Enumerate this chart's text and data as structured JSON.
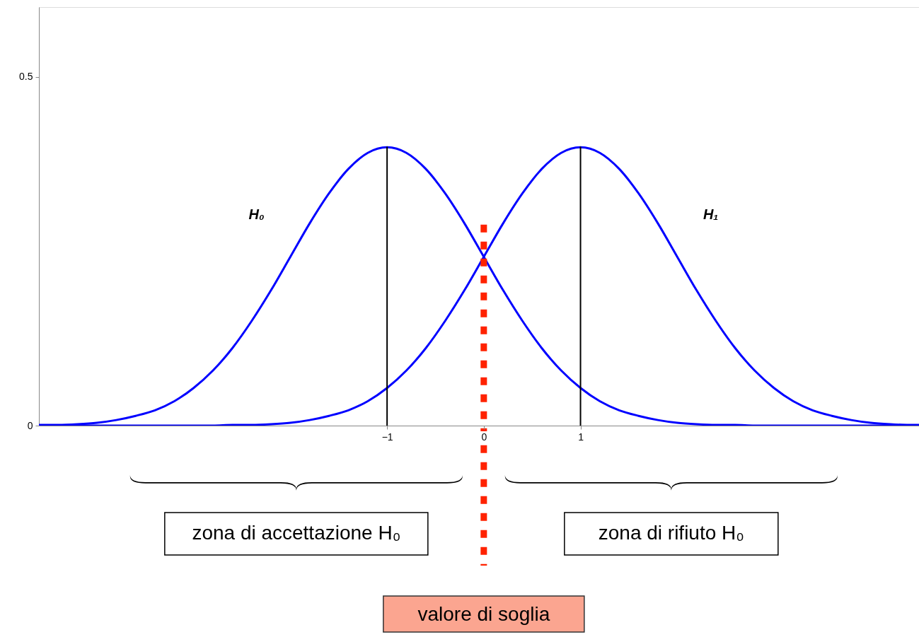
{
  "chart_data": {
    "type": "line",
    "series": [
      {
        "name": "H₀",
        "color": "#0000ff",
        "x": [
          -4.6,
          -4.4,
          -4.2,
          -4.0,
          -3.8,
          -3.6,
          -3.4,
          -3.2,
          -3.0,
          -2.8,
          -2.6,
          -2.4,
          -2.2,
          -2.0,
          -1.8,
          -1.6,
          -1.4,
          -1.2,
          -1.0,
          -0.8,
          -0.6,
          -0.4,
          -0.2,
          0,
          0.2,
          0.4,
          0.6,
          0.8,
          1.0,
          1.2,
          1.4,
          1.6,
          1.8,
          2.0,
          2.2,
          2.4,
          2.6,
          2.8,
          3.0,
          3.2,
          3.4,
          3.6,
          3.8,
          4.0,
          4.2,
          4.4
        ],
        "values": [
          0.001,
          0.001,
          0.002,
          0.004,
          0.008,
          0.014,
          0.022,
          0.035,
          0.054,
          0.079,
          0.111,
          0.15,
          0.194,
          0.242,
          0.29,
          0.333,
          0.368,
          0.391,
          0.399,
          0.391,
          0.368,
          0.333,
          0.29,
          0.242,
          0.194,
          0.15,
          0.111,
          0.079,
          0.054,
          0.035,
          0.022,
          0.014,
          0.008,
          0.004,
          0.002,
          0.001,
          0.001,
          0,
          0,
          0,
          0,
          0,
          0,
          0,
          0,
          0
        ]
      },
      {
        "name": "H₁",
        "color": "#0000ff",
        "x": [
          -4.4,
          -4.2,
          -4.0,
          -3.8,
          -3.6,
          -3.4,
          -3.2,
          -3.0,
          -2.8,
          -2.6,
          -2.4,
          -2.2,
          -2.0,
          -1.8,
          -1.6,
          -1.4,
          -1.2,
          -1.0,
          -0.8,
          -0.6,
          -0.4,
          -0.2,
          0,
          0.2,
          0.4,
          0.6,
          0.8,
          1.0,
          1.2,
          1.4,
          1.6,
          1.8,
          2.0,
          2.2,
          2.4,
          2.6,
          2.8,
          3.0,
          3.2,
          3.4,
          3.6,
          3.8,
          4.0,
          4.2,
          4.4,
          4.5
        ],
        "values": [
          0,
          0,
          0,
          0,
          0,
          0,
          0,
          0,
          0,
          0.001,
          0.001,
          0.002,
          0.004,
          0.008,
          0.014,
          0.022,
          0.035,
          0.054,
          0.079,
          0.111,
          0.15,
          0.194,
          0.242,
          0.29,
          0.333,
          0.368,
          0.391,
          0.399,
          0.391,
          0.368,
          0.333,
          0.29,
          0.242,
          0.194,
          0.15,
          0.111,
          0.079,
          0.054,
          0.035,
          0.022,
          0.014,
          0.008,
          0.004,
          0.002,
          0.001,
          0.001
        ]
      },
      {
        "type": "line",
        "color": "#000000",
        "x": [
          -1,
          -1
        ],
        "values": [
          0,
          0.399
        ]
      },
      {
        "type": "line",
        "color": "#000000",
        "x": [
          1,
          1
        ],
        "values": [
          0,
          0.399
        ]
      }
    ],
    "xlim": [
      -4.6,
      4.5
    ],
    "xticks": [
      -1,
      0,
      1
    ],
    "ylim": [
      0,
      0.6
    ],
    "yticks": [
      0,
      0.5
    ],
    "grid": false,
    "legend": false,
    "ref_lines": [
      {
        "axis": "x",
        "value": 0,
        "label": "valore di soglia",
        "color": "#ff2200",
        "line_style": "dotted"
      }
    ],
    "annotations": [
      "zona di accettazione H₀",
      "zona di rifiuto H₀"
    ]
  }
}
